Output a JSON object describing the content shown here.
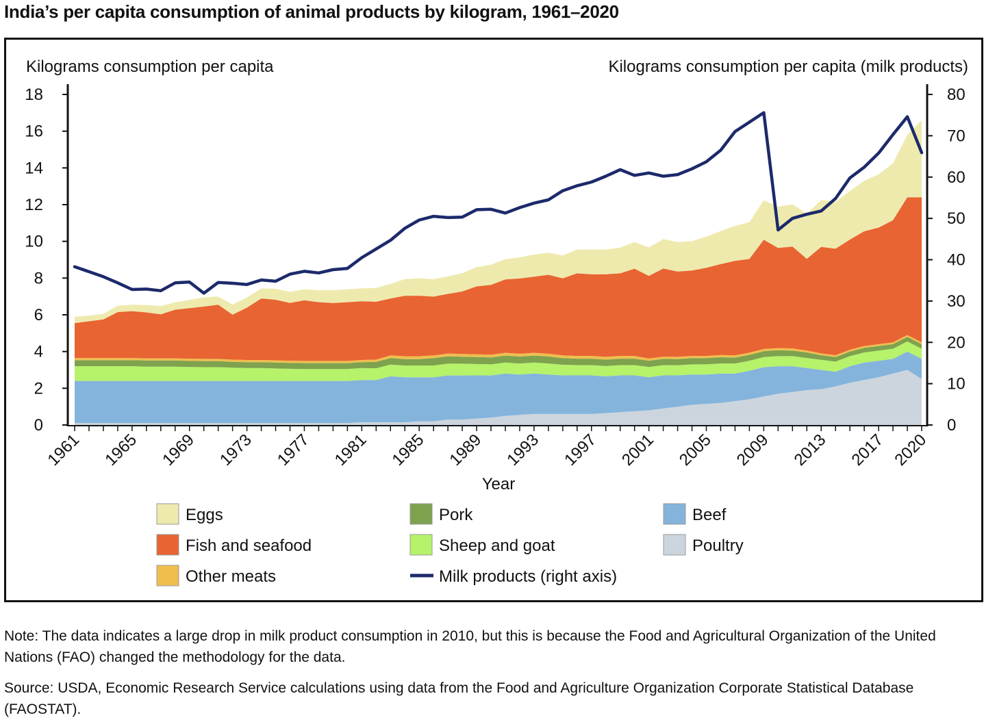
{
  "title": "India’s per capita consumption of animal products by kilogram, 1961–2020",
  "note": "Note: The data indicates a large drop in milk product consumption in 2010, but this is because the Food and Agricultural Organization of the United Nations (FAO) changed the methodology for the data.",
  "source": "Source: USDA, Economic Research Service calculations using data from the Food and Agriculture Organization Corporate Statistical Database (FAOSTAT).",
  "chart_data": {
    "type": "area",
    "stacked": true,
    "xlabel": "Year",
    "ylabel": "Kilograms consumption per capita",
    "ylabel_right": "Kilograms consumption per capita (milk products)",
    "ylim": [
      0,
      18
    ],
    "ylim_right": [
      0,
      80
    ],
    "yticks": [
      0,
      2,
      4,
      6,
      8,
      10,
      12,
      14,
      16,
      18
    ],
    "yticks_right": [
      0,
      10,
      20,
      30,
      40,
      50,
      60,
      70,
      80
    ],
    "xticks": [
      1961,
      1965,
      1969,
      1973,
      1977,
      1981,
      1985,
      1989,
      1993,
      1997,
      2001,
      2005,
      2009,
      2013,
      2017,
      2020
    ],
    "grid": false,
    "legend_position": "bottom",
    "x": [
      1961,
      1962,
      1963,
      1964,
      1965,
      1966,
      1967,
      1968,
      1969,
      1970,
      1971,
      1972,
      1973,
      1974,
      1975,
      1976,
      1977,
      1978,
      1979,
      1980,
      1981,
      1982,
      1983,
      1984,
      1985,
      1986,
      1987,
      1988,
      1989,
      1990,
      1991,
      1992,
      1993,
      1994,
      1995,
      1996,
      1997,
      1998,
      1999,
      2000,
      2001,
      2002,
      2003,
      2004,
      2005,
      2006,
      2007,
      2008,
      2009,
      2010,
      2011,
      2012,
      2013,
      2014,
      2015,
      2016,
      2017,
      2018,
      2019,
      2020
    ],
    "series": [
      {
        "name": "Poultry",
        "color": "#ccd5dd",
        "values": [
          0.1,
          0.1,
          0.1,
          0.1,
          0.1,
          0.1,
          0.1,
          0.1,
          0.1,
          0.1,
          0.1,
          0.1,
          0.1,
          0.1,
          0.1,
          0.1,
          0.1,
          0.1,
          0.1,
          0.1,
          0.15,
          0.15,
          0.15,
          0.15,
          0.2,
          0.2,
          0.3,
          0.3,
          0.35,
          0.4,
          0.5,
          0.55,
          0.6,
          0.6,
          0.6,
          0.6,
          0.6,
          0.65,
          0.7,
          0.75,
          0.8,
          0.9,
          1.0,
          1.1,
          1.15,
          1.2,
          1.3,
          1.4,
          1.55,
          1.7,
          1.8,
          1.9,
          1.95,
          2.1,
          2.3,
          2.45,
          2.6,
          2.8,
          3.0,
          2.5
        ]
      },
      {
        "name": "Beef",
        "color": "#84b4dc",
        "values": [
          2.3,
          2.3,
          2.3,
          2.3,
          2.3,
          2.3,
          2.3,
          2.3,
          2.3,
          2.3,
          2.3,
          2.3,
          2.3,
          2.3,
          2.3,
          2.3,
          2.3,
          2.3,
          2.3,
          2.3,
          2.3,
          2.3,
          2.5,
          2.45,
          2.4,
          2.4,
          2.4,
          2.4,
          2.35,
          2.3,
          2.3,
          2.2,
          2.2,
          2.15,
          2.1,
          2.1,
          2.1,
          2.0,
          2.0,
          1.95,
          1.8,
          1.8,
          1.7,
          1.65,
          1.6,
          1.6,
          1.5,
          1.55,
          1.6,
          1.5,
          1.4,
          1.2,
          1.05,
          0.8,
          0.9,
          0.95,
          0.9,
          0.8,
          1.0,
          1.1
        ]
      },
      {
        "name": "Sheep and goat",
        "color": "#b6f26a",
        "values": [
          0.8,
          0.8,
          0.8,
          0.8,
          0.8,
          0.78,
          0.78,
          0.78,
          0.76,
          0.75,
          0.75,
          0.72,
          0.7,
          0.7,
          0.68,
          0.66,
          0.65,
          0.65,
          0.65,
          0.65,
          0.65,
          0.64,
          0.64,
          0.64,
          0.64,
          0.64,
          0.64,
          0.64,
          0.62,
          0.6,
          0.6,
          0.6,
          0.6,
          0.6,
          0.58,
          0.56,
          0.56,
          0.56,
          0.56,
          0.56,
          0.56,
          0.56,
          0.55,
          0.55,
          0.55,
          0.55,
          0.55,
          0.55,
          0.55,
          0.55,
          0.55,
          0.55,
          0.55,
          0.55,
          0.55,
          0.55,
          0.55,
          0.55,
          0.55,
          0.55
        ]
      },
      {
        "name": "Pork",
        "color": "#7ea24e",
        "values": [
          0.33,
          0.33,
          0.33,
          0.33,
          0.33,
          0.33,
          0.33,
          0.33,
          0.33,
          0.33,
          0.33,
          0.32,
          0.32,
          0.32,
          0.32,
          0.32,
          0.32,
          0.32,
          0.32,
          0.32,
          0.32,
          0.35,
          0.35,
          0.35,
          0.35,
          0.4,
          0.4,
          0.38,
          0.38,
          0.38,
          0.38,
          0.38,
          0.38,
          0.38,
          0.36,
          0.35,
          0.35,
          0.35,
          0.35,
          0.35,
          0.34,
          0.34,
          0.34,
          0.34,
          0.34,
          0.34,
          0.32,
          0.32,
          0.32,
          0.32,
          0.3,
          0.3,
          0.25,
          0.25,
          0.25,
          0.25,
          0.25,
          0.25,
          0.25,
          0.25
        ]
      },
      {
        "name": "Other meats",
        "color": "#efbe4e",
        "values": [
          0.12,
          0.12,
          0.12,
          0.12,
          0.12,
          0.12,
          0.12,
          0.12,
          0.12,
          0.12,
          0.12,
          0.12,
          0.12,
          0.12,
          0.12,
          0.12,
          0.12,
          0.12,
          0.12,
          0.12,
          0.12,
          0.12,
          0.15,
          0.15,
          0.15,
          0.15,
          0.15,
          0.15,
          0.15,
          0.15,
          0.15,
          0.15,
          0.15,
          0.15,
          0.15,
          0.15,
          0.15,
          0.15,
          0.15,
          0.15,
          0.12,
          0.12,
          0.12,
          0.12,
          0.12,
          0.12,
          0.12,
          0.12,
          0.12,
          0.12,
          0.12,
          0.1,
          0.1,
          0.1,
          0.1,
          0.1,
          0.1,
          0.1,
          0.1,
          0.1
        ]
      },
      {
        "name": "Fish and seafood",
        "color": "#e86432",
        "values": [
          1.9,
          2.0,
          2.1,
          2.5,
          2.55,
          2.5,
          2.4,
          2.65,
          2.75,
          2.85,
          2.95,
          2.45,
          2.85,
          3.35,
          3.3,
          3.15,
          3.3,
          3.2,
          3.15,
          3.2,
          3.2,
          3.15,
          3.1,
          3.3,
          3.3,
          3.2,
          3.25,
          3.4,
          3.7,
          3.8,
          4.0,
          4.1,
          4.15,
          4.3,
          4.2,
          4.5,
          4.45,
          4.5,
          4.5,
          4.75,
          4.5,
          4.8,
          4.65,
          4.65,
          4.8,
          4.95,
          5.15,
          5.1,
          5.95,
          5.45,
          5.55,
          5.0,
          5.8,
          5.8,
          6.0,
          6.25,
          6.35,
          6.65,
          7.5,
          7.9
        ]
      },
      {
        "name": "Eggs",
        "color": "#eeeaae",
        "values": [
          0.35,
          0.3,
          0.3,
          0.35,
          0.35,
          0.4,
          0.45,
          0.4,
          0.45,
          0.5,
          0.45,
          0.55,
          0.55,
          0.55,
          0.6,
          0.6,
          0.6,
          0.65,
          0.7,
          0.7,
          0.7,
          0.75,
          0.8,
          0.9,
          0.95,
          0.95,
          0.95,
          1.0,
          1.05,
          1.1,
          1.1,
          1.15,
          1.2,
          1.2,
          1.25,
          1.3,
          1.35,
          1.35,
          1.4,
          1.45,
          1.55,
          1.6,
          1.6,
          1.6,
          1.7,
          1.8,
          1.9,
          2.0,
          2.15,
          2.25,
          2.3,
          2.45,
          2.55,
          2.55,
          2.65,
          2.75,
          2.9,
          3.1,
          3.4,
          4.2
        ]
      }
    ],
    "line_series": {
      "name": "Milk products (right axis)",
      "color": "#1c2a6b",
      "axis": "right",
      "values": [
        38.3,
        37.1,
        35.9,
        34.4,
        32.8,
        32.9,
        32.5,
        34.4,
        34.6,
        31.9,
        34.5,
        34.3,
        34.0,
        35.1,
        34.8,
        36.5,
        37.2,
        36.8,
        37.6,
        37.9,
        40.5,
        42.6,
        44.7,
        47.6,
        49.6,
        50.5,
        50.2,
        50.3,
        52.1,
        52.2,
        51.3,
        52.6,
        53.7,
        54.5,
        56.7,
        57.9,
        58.8,
        60.2,
        61.8,
        60.4,
        61.0,
        60.2,
        60.6,
        62.0,
        63.7,
        66.5,
        71.0,
        73.3,
        75.6,
        47.2,
        50.0,
        51.0,
        51.8,
        54.8,
        59.8,
        62.4,
        65.8,
        70.3,
        74.6,
        65.9
      ]
    }
  },
  "legend": [
    {
      "label": "Eggs",
      "color": "#eeeaae",
      "kind": "swatch"
    },
    {
      "label": "Pork",
      "color": "#7ea24e",
      "kind": "swatch"
    },
    {
      "label": "Beef",
      "color": "#84b4dc",
      "kind": "swatch"
    },
    {
      "label": "Fish and seafood",
      "color": "#e86432",
      "kind": "swatch"
    },
    {
      "label": "Sheep and goat",
      "color": "#b6f26a",
      "kind": "swatch"
    },
    {
      "label": "Poultry",
      "color": "#ccd5dd",
      "kind": "swatch"
    },
    {
      "label": "Other meats",
      "color": "#efbe4e",
      "kind": "swatch"
    },
    {
      "label": "Milk products (right axis)",
      "color": "#1c2a6b",
      "kind": "line"
    }
  ]
}
